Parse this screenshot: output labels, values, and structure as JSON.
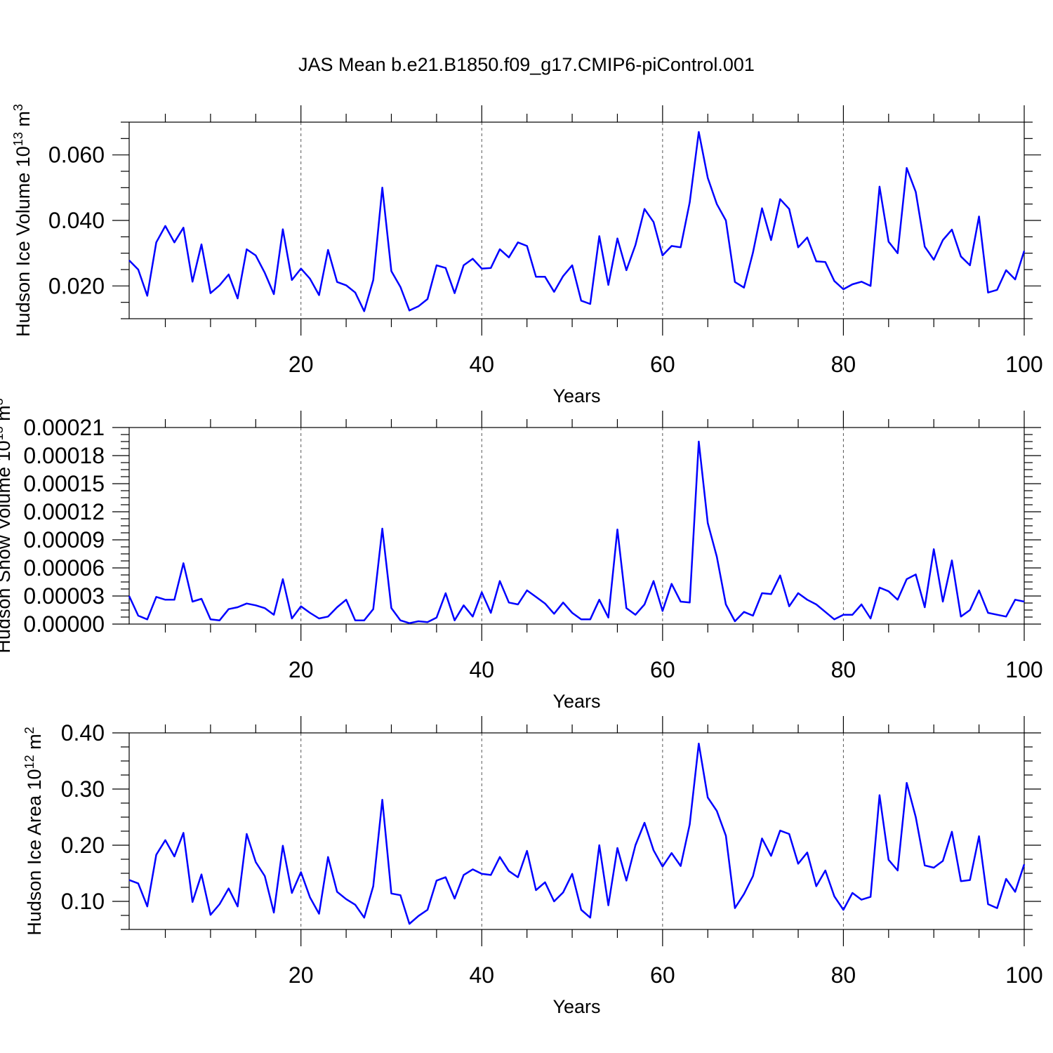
{
  "title": "JAS Mean b.e21.B1850.f09_g17.CMIP6-piControl.001",
  "colors": {
    "line": "#0000ff",
    "axis": "#000000",
    "grid": "#555555"
  },
  "chart_data": [
    {
      "type": "line",
      "ylabel_main": "Hudson Ice Volume 10",
      "ylabel_exp": "13",
      "ylabel_unit": " m",
      "ylabel_unit_exp": "3",
      "xlabel": "Years",
      "xlim": [
        1,
        100
      ],
      "ylim": [
        0.01,
        0.07
      ],
      "xticks": [
        20,
        40,
        60,
        80,
        100
      ],
      "xtick_labels": [
        "20",
        "40",
        "60",
        "80",
        "100"
      ],
      "yticks": [
        0.02,
        0.04,
        0.06
      ],
      "ytick_labels": [
        "0.020",
        "0.040",
        "0.060"
      ],
      "grid": "x dashed",
      "x": [
        1,
        2,
        3,
        4,
        5,
        6,
        7,
        8,
        9,
        10,
        11,
        12,
        13,
        14,
        15,
        16,
        17,
        18,
        19,
        20,
        21,
        22,
        23,
        24,
        25,
        26,
        27,
        28,
        29,
        30,
        31,
        32,
        33,
        34,
        35,
        36,
        37,
        38,
        39,
        40,
        41,
        42,
        43,
        44,
        45,
        46,
        47,
        48,
        49,
        50,
        51,
        52,
        53,
        54,
        55,
        56,
        57,
        58,
        59,
        60,
        61,
        62,
        63,
        64,
        65,
        66,
        67,
        68,
        69,
        70,
        71,
        72,
        73,
        74,
        75,
        76,
        77,
        78,
        79,
        80,
        81,
        82,
        83,
        84,
        85,
        86,
        87,
        88,
        89,
        90,
        91,
        92,
        93,
        94,
        95,
        96,
        97,
        98,
        99,
        100
      ],
      "values": [
        0.0278,
        0.025,
        0.017,
        0.0333,
        0.0383,
        0.0333,
        0.0378,
        0.0213,
        0.0327,
        0.0178,
        0.0202,
        0.0235,
        0.0162,
        0.0312,
        0.0293,
        0.024,
        0.0175,
        0.0373,
        0.0218,
        0.0253,
        0.0222,
        0.0172,
        0.031,
        0.0212,
        0.0202,
        0.018,
        0.0123,
        0.0218,
        0.05,
        0.0245,
        0.0197,
        0.0125,
        0.0138,
        0.016,
        0.0263,
        0.0255,
        0.0178,
        0.0263,
        0.0283,
        0.0253,
        0.0255,
        0.0312,
        0.0287,
        0.0333,
        0.0322,
        0.0228,
        0.0228,
        0.0182,
        0.023,
        0.0263,
        0.0155,
        0.0145,
        0.0352,
        0.0203,
        0.0345,
        0.0248,
        0.0325,
        0.0435,
        0.0395,
        0.0293,
        0.0322,
        0.0318,
        0.0455,
        0.067,
        0.053,
        0.045,
        0.04,
        0.0212,
        0.0195,
        0.0302,
        0.0437,
        0.034,
        0.0465,
        0.0435,
        0.0318,
        0.0348,
        0.0275,
        0.0273,
        0.0215,
        0.019,
        0.0205,
        0.0213,
        0.02,
        0.0503,
        0.0335,
        0.03,
        0.056,
        0.0487,
        0.032,
        0.028,
        0.034,
        0.0372,
        0.029,
        0.0263,
        0.0412,
        0.018,
        0.0188,
        0.0248,
        0.022,
        0.0307
      ]
    },
    {
      "type": "line",
      "ylabel_main": "Hudson Snow Volume 10",
      "ylabel_exp": "13",
      "ylabel_unit": " m",
      "ylabel_unit_exp": "3",
      "xlabel": "Years",
      "xlim": [
        1,
        100
      ],
      "ylim": [
        0,
        0.00021
      ],
      "xticks": [
        20,
        40,
        60,
        80,
        100
      ],
      "xtick_labels": [
        "20",
        "40",
        "60",
        "80",
        "100"
      ],
      "yticks": [
        0,
        3e-05,
        6e-05,
        9e-05,
        0.00012,
        0.00015,
        0.00018,
        0.00021
      ],
      "ytick_labels": [
        "0.00000",
        "0.00003",
        "0.00006",
        "0.00009",
        "0.00012",
        "0.00015",
        "0.00018",
        "0.00021"
      ],
      "grid": "x dashed",
      "x": [
        1,
        2,
        3,
        4,
        5,
        6,
        7,
        8,
        9,
        10,
        11,
        12,
        13,
        14,
        15,
        16,
        17,
        18,
        19,
        20,
        21,
        22,
        23,
        24,
        25,
        26,
        27,
        28,
        29,
        30,
        31,
        32,
        33,
        34,
        35,
        36,
        37,
        38,
        39,
        40,
        41,
        42,
        43,
        44,
        45,
        46,
        47,
        48,
        49,
        50,
        51,
        52,
        53,
        54,
        55,
        56,
        57,
        58,
        59,
        60,
        61,
        62,
        63,
        64,
        65,
        66,
        67,
        68,
        69,
        70,
        71,
        72,
        73,
        74,
        75,
        76,
        77,
        78,
        79,
        80,
        81,
        82,
        83,
        84,
        85,
        86,
        87,
        88,
        89,
        90,
        91,
        92,
        93,
        94,
        95,
        96,
        97,
        98,
        99,
        100
      ],
      "values": [
        3e-05,
        9e-06,
        5e-06,
        2.9e-05,
        2.6e-05,
        2.6e-05,
        6.5e-05,
        2.4e-05,
        2.7e-05,
        5e-06,
        4e-06,
        1.6e-05,
        1.8e-05,
        2.2e-05,
        2e-05,
        1.7e-05,
        1e-05,
        4.8e-05,
        6e-06,
        1.9e-05,
        1.2e-05,
        6e-06,
        8e-06,
        1.8e-05,
        2.6e-05,
        4e-06,
        4e-06,
        1.6e-05,
        0.000102,
        1.7e-05,
        4e-06,
        1e-06,
        3e-06,
        2e-06,
        7e-06,
        3.3e-05,
        4e-06,
        2e-05,
        8e-06,
        3.4e-05,
        1.2e-05,
        4.6e-05,
        2.3e-05,
        2.1e-05,
        3.6e-05,
        2.9e-05,
        2.2e-05,
        1.1e-05,
        2.3e-05,
        1.2e-05,
        5e-06,
        5e-06,
        2.6e-05,
        7e-06,
        0.000101,
        1.7e-05,
        1e-05,
        2.1e-05,
        4.6e-05,
        1.4e-05,
        4.3e-05,
        2.4e-05,
        2.3e-05,
        0.000195,
        0.000108,
        7.2e-05,
        2.1e-05,
        3e-06,
        1.3e-05,
        9e-06,
        3.3e-05,
        3.2e-05,
        5.2e-05,
        1.9e-05,
        3.3e-05,
        2.6e-05,
        2.1e-05,
        1.3e-05,
        5e-06,
        1e-05,
        1e-05,
        2.1e-05,
        6e-06,
        3.9e-05,
        3.5e-05,
        2.6e-05,
        4.8e-05,
        5.3e-05,
        1.8e-05,
        8e-05,
        2.4e-05,
        6.8e-05,
        8e-06,
        1.5e-05,
        3.6e-05,
        1.2e-05,
        1e-05,
        8e-06,
        2.6e-05,
        2.4e-05
      ]
    },
    {
      "type": "line",
      "ylabel_main": "Hudson Ice Area 10",
      "ylabel_exp": "12",
      "ylabel_unit": " m",
      "ylabel_unit_exp": "2",
      "xlabel": "Years",
      "xlim": [
        1,
        100
      ],
      "ylim": [
        0.05,
        0.4
      ],
      "xticks": [
        20,
        40,
        60,
        80,
        100
      ],
      "xtick_labels": [
        "20",
        "40",
        "60",
        "80",
        "100"
      ],
      "yticks": [
        0.1,
        0.2,
        0.3,
        0.4
      ],
      "ytick_labels": [
        "0.10",
        "0.20",
        "0.30",
        "0.40"
      ],
      "grid": "x dashed",
      "x": [
        1,
        2,
        3,
        4,
        5,
        6,
        7,
        8,
        9,
        10,
        11,
        12,
        13,
        14,
        15,
        16,
        17,
        18,
        19,
        20,
        21,
        22,
        23,
        24,
        25,
        26,
        27,
        28,
        29,
        30,
        31,
        32,
        33,
        34,
        35,
        36,
        37,
        38,
        39,
        40,
        41,
        42,
        43,
        44,
        45,
        46,
        47,
        48,
        49,
        50,
        51,
        52,
        53,
        54,
        55,
        56,
        57,
        58,
        59,
        60,
        61,
        62,
        63,
        64,
        65,
        66,
        67,
        68,
        69,
        70,
        71,
        72,
        73,
        74,
        75,
        76,
        77,
        78,
        79,
        80,
        81,
        82,
        83,
        84,
        85,
        86,
        87,
        88,
        89,
        90,
        91,
        92,
        93,
        94,
        95,
        96,
        97,
        98,
        99,
        100
      ],
      "values": [
        0.138,
        0.132,
        0.091,
        0.183,
        0.209,
        0.18,
        0.222,
        0.099,
        0.148,
        0.076,
        0.095,
        0.123,
        0.091,
        0.22,
        0.17,
        0.145,
        0.08,
        0.199,
        0.115,
        0.152,
        0.107,
        0.078,
        0.179,
        0.117,
        0.104,
        0.094,
        0.071,
        0.127,
        0.281,
        0.114,
        0.111,
        0.06,
        0.074,
        0.085,
        0.137,
        0.143,
        0.105,
        0.147,
        0.157,
        0.149,
        0.147,
        0.179,
        0.154,
        0.143,
        0.19,
        0.12,
        0.134,
        0.1,
        0.116,
        0.149,
        0.085,
        0.071,
        0.2,
        0.093,
        0.195,
        0.137,
        0.2,
        0.24,
        0.191,
        0.162,
        0.186,
        0.163,
        0.237,
        0.381,
        0.285,
        0.261,
        0.217,
        0.088,
        0.113,
        0.145,
        0.212,
        0.181,
        0.226,
        0.22,
        0.167,
        0.187,
        0.127,
        0.155,
        0.109,
        0.085,
        0.115,
        0.103,
        0.108,
        0.289,
        0.174,
        0.155,
        0.311,
        0.25,
        0.164,
        0.16,
        0.172,
        0.224,
        0.136,
        0.138,
        0.216,
        0.095,
        0.088,
        0.14,
        0.117,
        0.166
      ]
    }
  ]
}
